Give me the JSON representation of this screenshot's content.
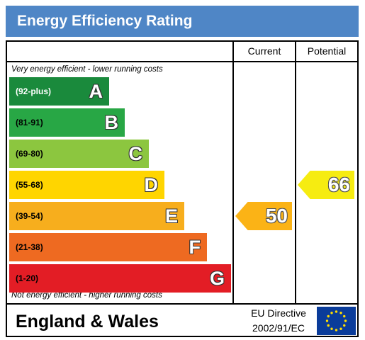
{
  "header": {
    "title": "Energy Efficiency Rating"
  },
  "columns": {
    "current": "Current",
    "potential": "Potential"
  },
  "notes": {
    "top": "Very energy efficient - lower running costs",
    "bottom": "Not energy efficient - higher running costs"
  },
  "footer": {
    "region": "England & Wales",
    "directive_line1": "EU Directive",
    "directive_line2": "2002/91/EC"
  },
  "colors": {
    "header": "#4f86c6",
    "A": "#1a8a3c",
    "B": "#28a745",
    "C": "#8cc63f",
    "D": "#ffd500",
    "E": "#f7ae1d",
    "F": "#ee6a21",
    "G": "#e31d25",
    "current_arrow": "#fbb316",
    "potential_arrow": "#f6ec11"
  },
  "chart_data": {
    "type": "bar",
    "title": "Energy Efficiency Rating",
    "categories": [
      "A",
      "B",
      "C",
      "D",
      "E",
      "F",
      "G"
    ],
    "ranges": [
      "(92-plus)",
      "(81-91)",
      "(69-80)",
      "(55-68)",
      "(39-54)",
      "(21-38)",
      "(1-20)"
    ],
    "bands": [
      {
        "letter": "A",
        "range": "(92-plus)",
        "min": 92,
        "max": 100
      },
      {
        "letter": "B",
        "range": "(81-91)",
        "min": 81,
        "max": 91
      },
      {
        "letter": "C",
        "range": "(69-80)",
        "min": 69,
        "max": 80
      },
      {
        "letter": "D",
        "range": "(55-68)",
        "min": 55,
        "max": 68
      },
      {
        "letter": "E",
        "range": "(39-54)",
        "min": 39,
        "max": 54
      },
      {
        "letter": "F",
        "range": "(21-38)",
        "min": 21,
        "max": 38
      },
      {
        "letter": "G",
        "range": "(1-20)",
        "min": 1,
        "max": 20
      }
    ],
    "current": 50,
    "current_band": "E",
    "potential": 66,
    "potential_band": "D"
  }
}
